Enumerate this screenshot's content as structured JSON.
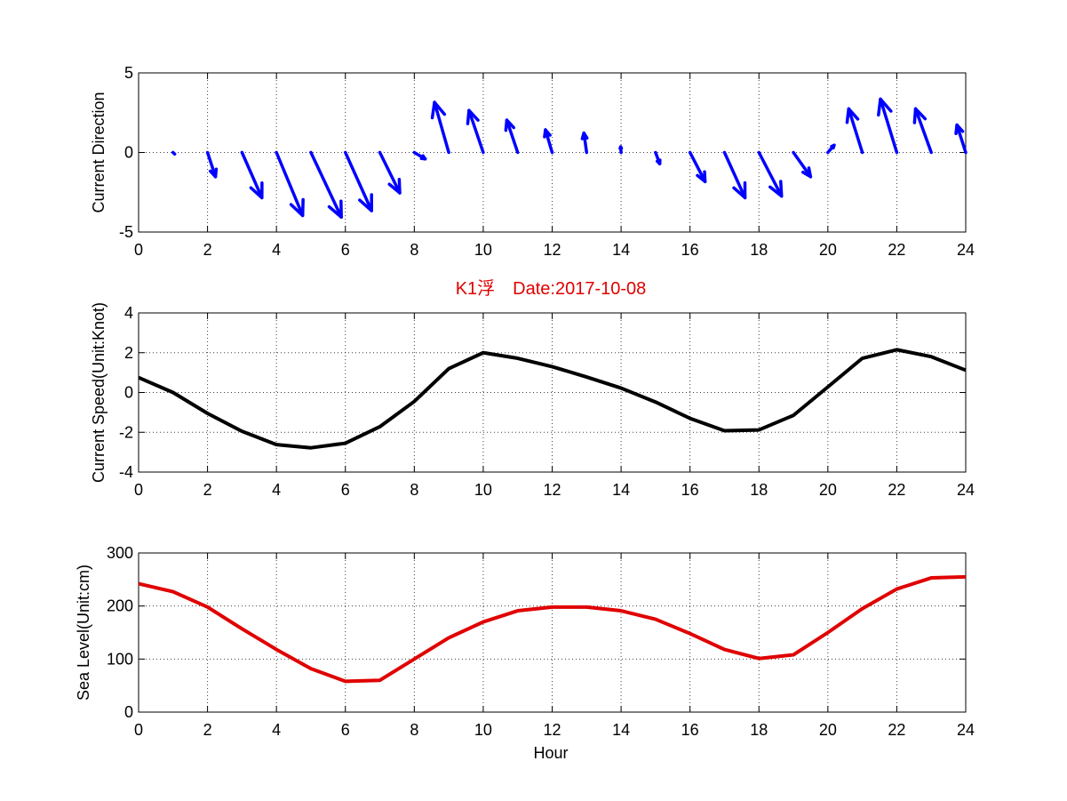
{
  "colors": {
    "arrows": "#0000ff",
    "speed_line": "#000000",
    "sea_level_line": "#e00000",
    "title": "#e00000"
  },
  "title": "K1浮　Date:2017-10-08",
  "xlabel": "Hour",
  "chart_data": [
    {
      "type": "quiver",
      "ylabel": "Current Direction",
      "xlim": [
        0,
        24
      ],
      "ylim": [
        -5,
        5
      ],
      "xticks": [
        "0",
        "2",
        "4",
        "6",
        "8",
        "10",
        "12",
        "14",
        "16",
        "18",
        "20",
        "22",
        "24"
      ],
      "yticks": [
        "-5",
        "0",
        "5"
      ],
      "grid": true,
      "arrow_color": "#0000ff",
      "arrows": [
        {
          "x": 1,
          "u": 0.08,
          "v": -0.1
        },
        {
          "x": 2,
          "u": 0.38,
          "v": -1.5
        },
        {
          "x": 3,
          "u": 0.95,
          "v": -2.8
        },
        {
          "x": 4,
          "u": 1.25,
          "v": -3.9
        },
        {
          "x": 5,
          "u": 1.45,
          "v": -4.0
        },
        {
          "x": 6,
          "u": 1.25,
          "v": -3.6
        },
        {
          "x": 7,
          "u": 0.95,
          "v": -2.5
        },
        {
          "x": 8,
          "u": 0.52,
          "v": -0.4
        },
        {
          "x": 9,
          "u": -0.68,
          "v": 3.1
        },
        {
          "x": 10,
          "u": -0.68,
          "v": 2.6
        },
        {
          "x": 11,
          "u": -0.52,
          "v": 2.0
        },
        {
          "x": 12,
          "u": -0.32,
          "v": 1.4
        },
        {
          "x": 13,
          "u": -0.13,
          "v": 1.2
        },
        {
          "x": 14,
          "u": -0.02,
          "v": 0.35
        },
        {
          "x": 15,
          "u": 0.2,
          "v": -0.7
        },
        {
          "x": 16,
          "u": 0.72,
          "v": -1.8
        },
        {
          "x": 17,
          "u": 0.98,
          "v": -2.8
        },
        {
          "x": 18,
          "u": 1.08,
          "v": -2.7
        },
        {
          "x": 19,
          "u": 0.82,
          "v": -1.5
        },
        {
          "x": 20,
          "u": 0.3,
          "v": 0.45
        },
        {
          "x": 21,
          "u": -0.65,
          "v": 2.7
        },
        {
          "x": 22,
          "u": -0.78,
          "v": 3.3
        },
        {
          "x": 23,
          "u": -0.75,
          "v": 2.7
        },
        {
          "x": 24,
          "u": -0.42,
          "v": 1.7
        }
      ]
    },
    {
      "type": "line",
      "ylabel": "Current Speed(Unit:Knot)",
      "xlim": [
        0,
        24
      ],
      "ylim": [
        -4,
        4
      ],
      "xticks": [
        "0",
        "2",
        "4",
        "6",
        "8",
        "10",
        "12",
        "14",
        "16",
        "18",
        "20",
        "22",
        "24"
      ],
      "yticks": [
        "-4",
        "-2",
        "0",
        "2",
        "4"
      ],
      "grid": true,
      "series": [
        {
          "color": "#000000",
          "x": [
            0,
            1,
            2,
            3,
            4,
            5,
            6,
            7,
            8,
            9,
            10,
            11,
            12,
            13,
            14,
            15,
            16,
            17,
            18,
            19,
            20,
            21,
            22,
            23,
            24
          ],
          "y": [
            0.75,
            0.0,
            -1.05,
            -1.95,
            -2.62,
            -2.78,
            -2.55,
            -1.72,
            -0.45,
            1.2,
            2.0,
            1.72,
            1.3,
            0.78,
            0.22,
            -0.48,
            -1.3,
            -1.92,
            -1.88,
            -1.15,
            0.28,
            1.72,
            2.15,
            1.8,
            1.12
          ]
        }
      ]
    },
    {
      "type": "line",
      "ylabel": "Sea Level(Unit:cm)",
      "xlim": [
        0,
        24
      ],
      "ylim": [
        0,
        300
      ],
      "xticks": [
        "0",
        "2",
        "4",
        "6",
        "8",
        "10",
        "12",
        "14",
        "16",
        "18",
        "20",
        "22",
        "24"
      ],
      "yticks": [
        "0",
        "100",
        "200",
        "300"
      ],
      "grid": true,
      "series": [
        {
          "color": "#e00000",
          "x": [
            0,
            1,
            2,
            3,
            4,
            5,
            6,
            7,
            8,
            9,
            10,
            11,
            12,
            13,
            14,
            15,
            16,
            17,
            18,
            19,
            20,
            21,
            22,
            23,
            24
          ],
          "y": [
            242,
            227,
            198,
            157,
            118,
            82,
            58,
            60,
            100,
            140,
            170,
            191,
            198,
            198,
            191,
            175,
            148,
            118,
            101,
            108,
            150,
            195,
            232,
            253,
            255
          ]
        }
      ]
    }
  ]
}
